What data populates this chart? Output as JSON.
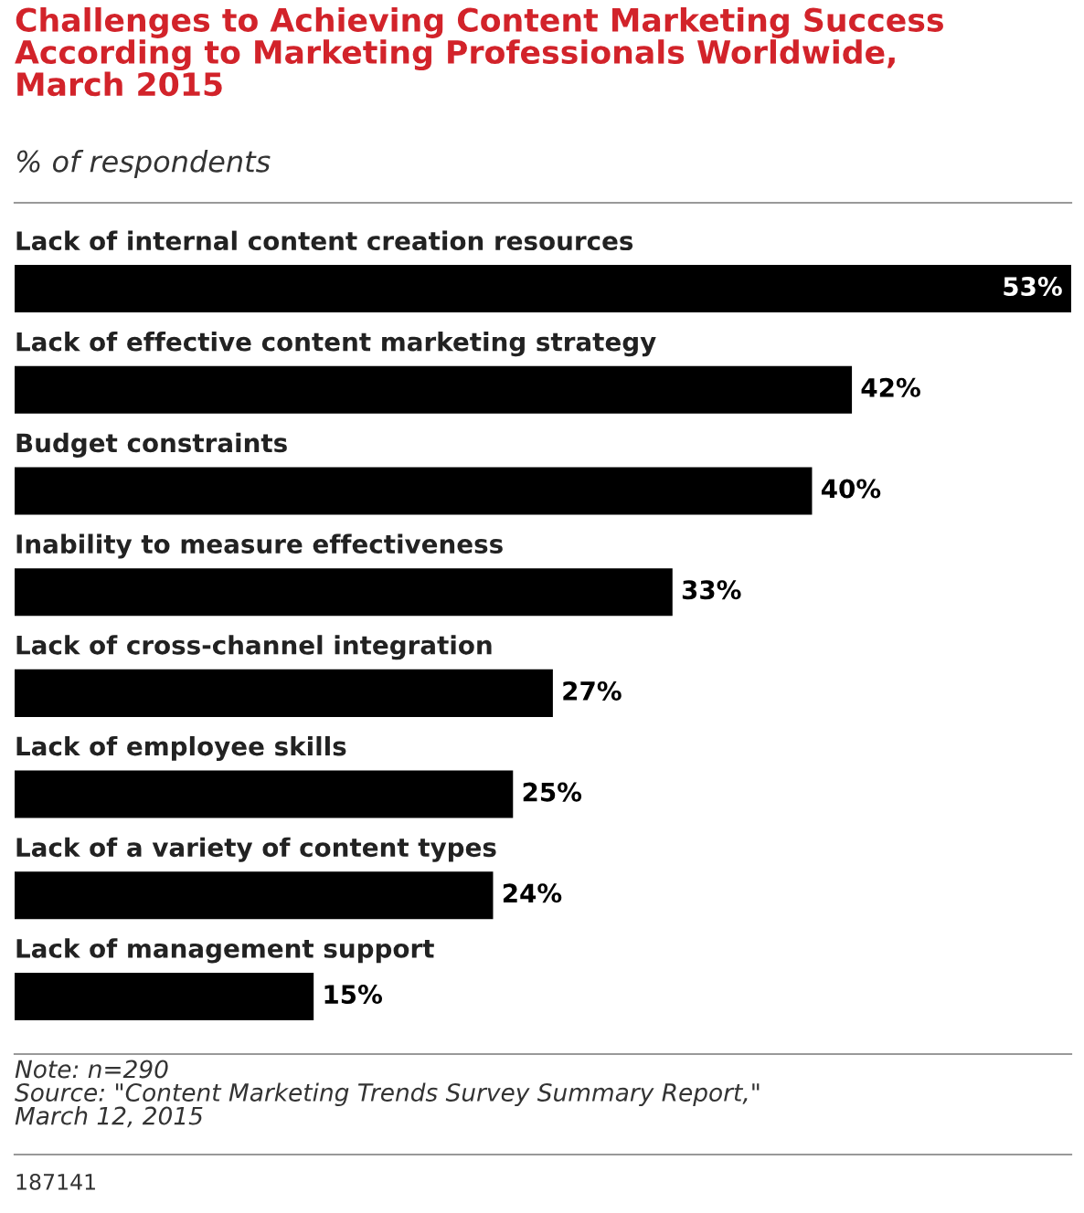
{
  "chart_data": {
    "type": "bar",
    "orientation": "horizontal",
    "title": "Challenges to Achieving Content Marketing Success\nAccording to Marketing Professionals Worldwide,\nMarch 2015",
    "subtitle": "% of respondents",
    "categories": [
      "Lack of internal content creation resources",
      "Lack of effective content marketing strategy",
      "Budget constraints",
      "Inability to measure effectiveness",
      "Lack of cross-channel integration",
      "Lack of employee skills",
      "Lack of a variety of content types",
      "Lack of management support"
    ],
    "values": [
      53,
      42,
      40,
      33,
      27,
      25,
      24,
      15
    ],
    "value_labels": [
      "53%",
      "42%",
      "40%",
      "33%",
      "27%",
      "25%",
      "24%",
      "15%"
    ],
    "color": "#000000",
    "annotations": [
      "Note: n=290\nSource: \"Content Marketing Trends Survey Summary Report,\"\nMarch 12, 2015",
      "187141"
    ]
  }
}
